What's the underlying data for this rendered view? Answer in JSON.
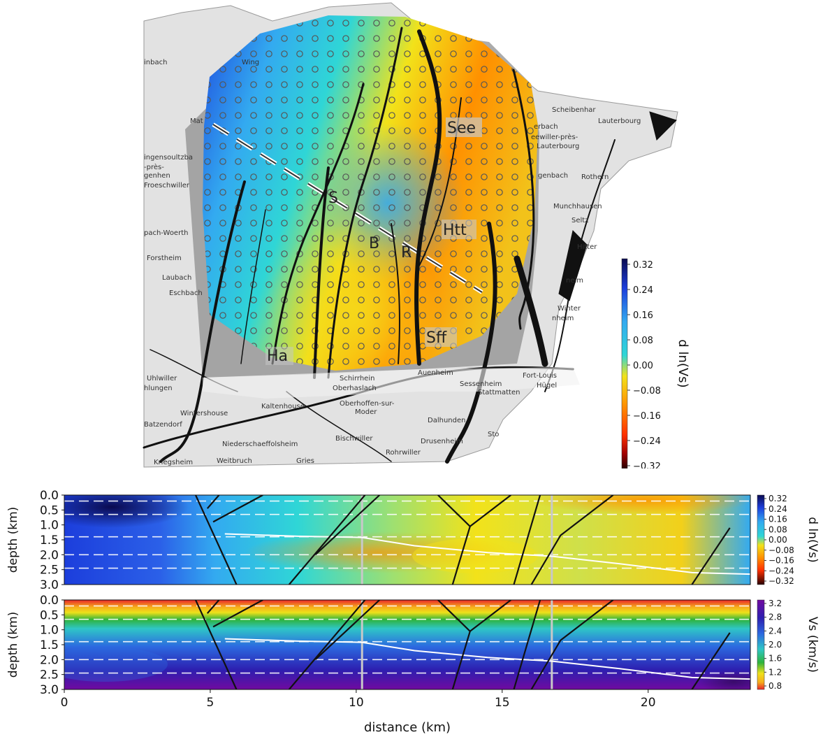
{
  "colors": {
    "velocity_scale": [
      "#2a0000",
      "#a00000",
      "#ff3000",
      "#ff9000",
      "#f2e21a",
      "#2fd6d6",
      "#33aaf0",
      "#1c3edc",
      "#0a0a50"
    ],
    "vs_scale": [
      "#e8262a",
      "#f6ad1c",
      "#efe11a",
      "#2fb33c",
      "#2fc6c6",
      "#2c6ae0",
      "#2d1fb0",
      "#700aa0"
    ],
    "fault": "#111111",
    "profile_line": "#ffffff"
  },
  "map": {
    "sites": [
      "See",
      "S",
      "B",
      "R",
      "Htt",
      "Sff",
      "Ha"
    ],
    "towns": [
      "Scheibenhar",
      "Lauterbourg",
      "erbach",
      "eewiller-près-",
      "Lauterbourg",
      "genbach",
      "Rothern",
      "Munchhausen",
      "Seltz",
      "Hitter",
      "neim",
      "Winter",
      "nheim",
      "Fort-Louis",
      "Hügel",
      "Auenheim",
      "Sessenheim",
      "Stattmatten",
      "Dalhunden",
      "Drusenheim",
      "Sto",
      "Bischwiller",
      "Rohrwiller",
      "Oberhoffen-sur-",
      "Moder",
      "Kaltenhouse",
      "Wintershouse",
      "Batzendorf",
      "Niederschaeffolsheim",
      "Kriegsheim",
      "Weitbruch",
      "Gries",
      "Schirrhein",
      "Oberhaslach",
      "Uhlwiller",
      "hlungen",
      "Laubach",
      "Eschbach",
      "Forstheim",
      "pach-Woerth",
      "Froeschwiller",
      "genhen",
      "-près-",
      "ingensoultzba",
      "Mat",
      "inbach",
      "Wing"
    ],
    "colorbar": {
      "label": "d ln(Vs)",
      "ticks": [
        "0.32",
        "0.24",
        "0.16",
        "0.08",
        "0.00",
        "−0.08",
        "−0.16",
        "−0.24",
        "−0.32"
      ]
    }
  },
  "chart_data": [
    {
      "type": "heatmap",
      "quantity": "d ln(Vs)",
      "xlabel": "",
      "ylabel": "depth (km)",
      "xlim": [
        0,
        23.5
      ],
      "ylim": [
        3.0,
        0.0
      ],
      "yticks": [
        "0.0",
        "0.5",
        "1.0",
        "1.5",
        "2.0",
        "2.5",
        "3.0"
      ],
      "xticks": [
        "0",
        "5",
        "10",
        "15",
        "20"
      ],
      "colorbar": {
        "label": "d ln(Vs)",
        "range": [
          -0.32,
          0.32
        ],
        "ticks": [
          "0.32",
          "0.24",
          "0.16",
          "0.08",
          "0.00",
          "−0.08",
          "−0.16",
          "−0.24",
          "−0.32"
        ]
      },
      "dashed_depths": [
        0.2,
        0.65,
        1.4,
        2.0,
        2.45
      ],
      "site_lines_x": [
        10.2,
        16.7
      ],
      "grid": true
    },
    {
      "type": "heatmap",
      "quantity": "Vs (km/s)",
      "xlabel": "distance (km)",
      "ylabel": "depth (km)",
      "xlim": [
        0,
        23.5
      ],
      "ylim": [
        3.0,
        0.0
      ],
      "yticks": [
        "0.0",
        "0.5",
        "1.0",
        "1.5",
        "2.0",
        "2.5",
        "3.0"
      ],
      "xticks": [
        "0",
        "5",
        "10",
        "15",
        "20"
      ],
      "colorbar": {
        "label": "Vs (km/s)",
        "range": [
          0.8,
          3.2
        ],
        "ticks": [
          "3.2",
          "2.8",
          "2.4",
          "2.0",
          "1.6",
          "1.2",
          "0.8"
        ]
      },
      "dashed_depths": [
        0.2,
        0.65,
        1.4,
        2.0,
        2.45
      ],
      "site_lines_x": [
        10.2,
        16.7
      ],
      "grid": true
    }
  ],
  "profile_line": [
    [
      5.5,
      1.3
    ],
    [
      8,
      1.38
    ],
    [
      10.2,
      1.42
    ],
    [
      12,
      1.7
    ],
    [
      14.5,
      1.93
    ],
    [
      16.7,
      2.05
    ],
    [
      19,
      2.3
    ],
    [
      21.5,
      2.6
    ],
    [
      23.5,
      2.65
    ]
  ],
  "faults": [
    [
      [
        4.5,
        0.0
      ],
      [
        5.9,
        3.0
      ]
    ],
    [
      [
        5.3,
        0.0
      ],
      [
        4.9,
        0.45
      ]
    ],
    [
      [
        6.8,
        0.0
      ],
      [
        5.1,
        0.9
      ]
    ],
    [
      [
        10.3,
        0.0
      ],
      [
        7.7,
        3.0
      ]
    ],
    [
      [
        10.8,
        0.0
      ],
      [
        8.6,
        2.0
      ]
    ],
    [
      [
        12.8,
        0.0
      ],
      [
        13.9,
        1.05
      ],
      [
        13.3,
        3.0
      ]
    ],
    [
      [
        15.3,
        0.0
      ],
      [
        13.9,
        1.05
      ]
    ],
    [
      [
        16.3,
        0.0
      ],
      [
        15.4,
        3.0
      ]
    ],
    [
      [
        18.8,
        0.0
      ],
      [
        17.0,
        1.35
      ],
      [
        16.0,
        3.0
      ]
    ],
    [
      [
        22.8,
        1.1
      ],
      [
        21.5,
        3.0
      ]
    ]
  ]
}
